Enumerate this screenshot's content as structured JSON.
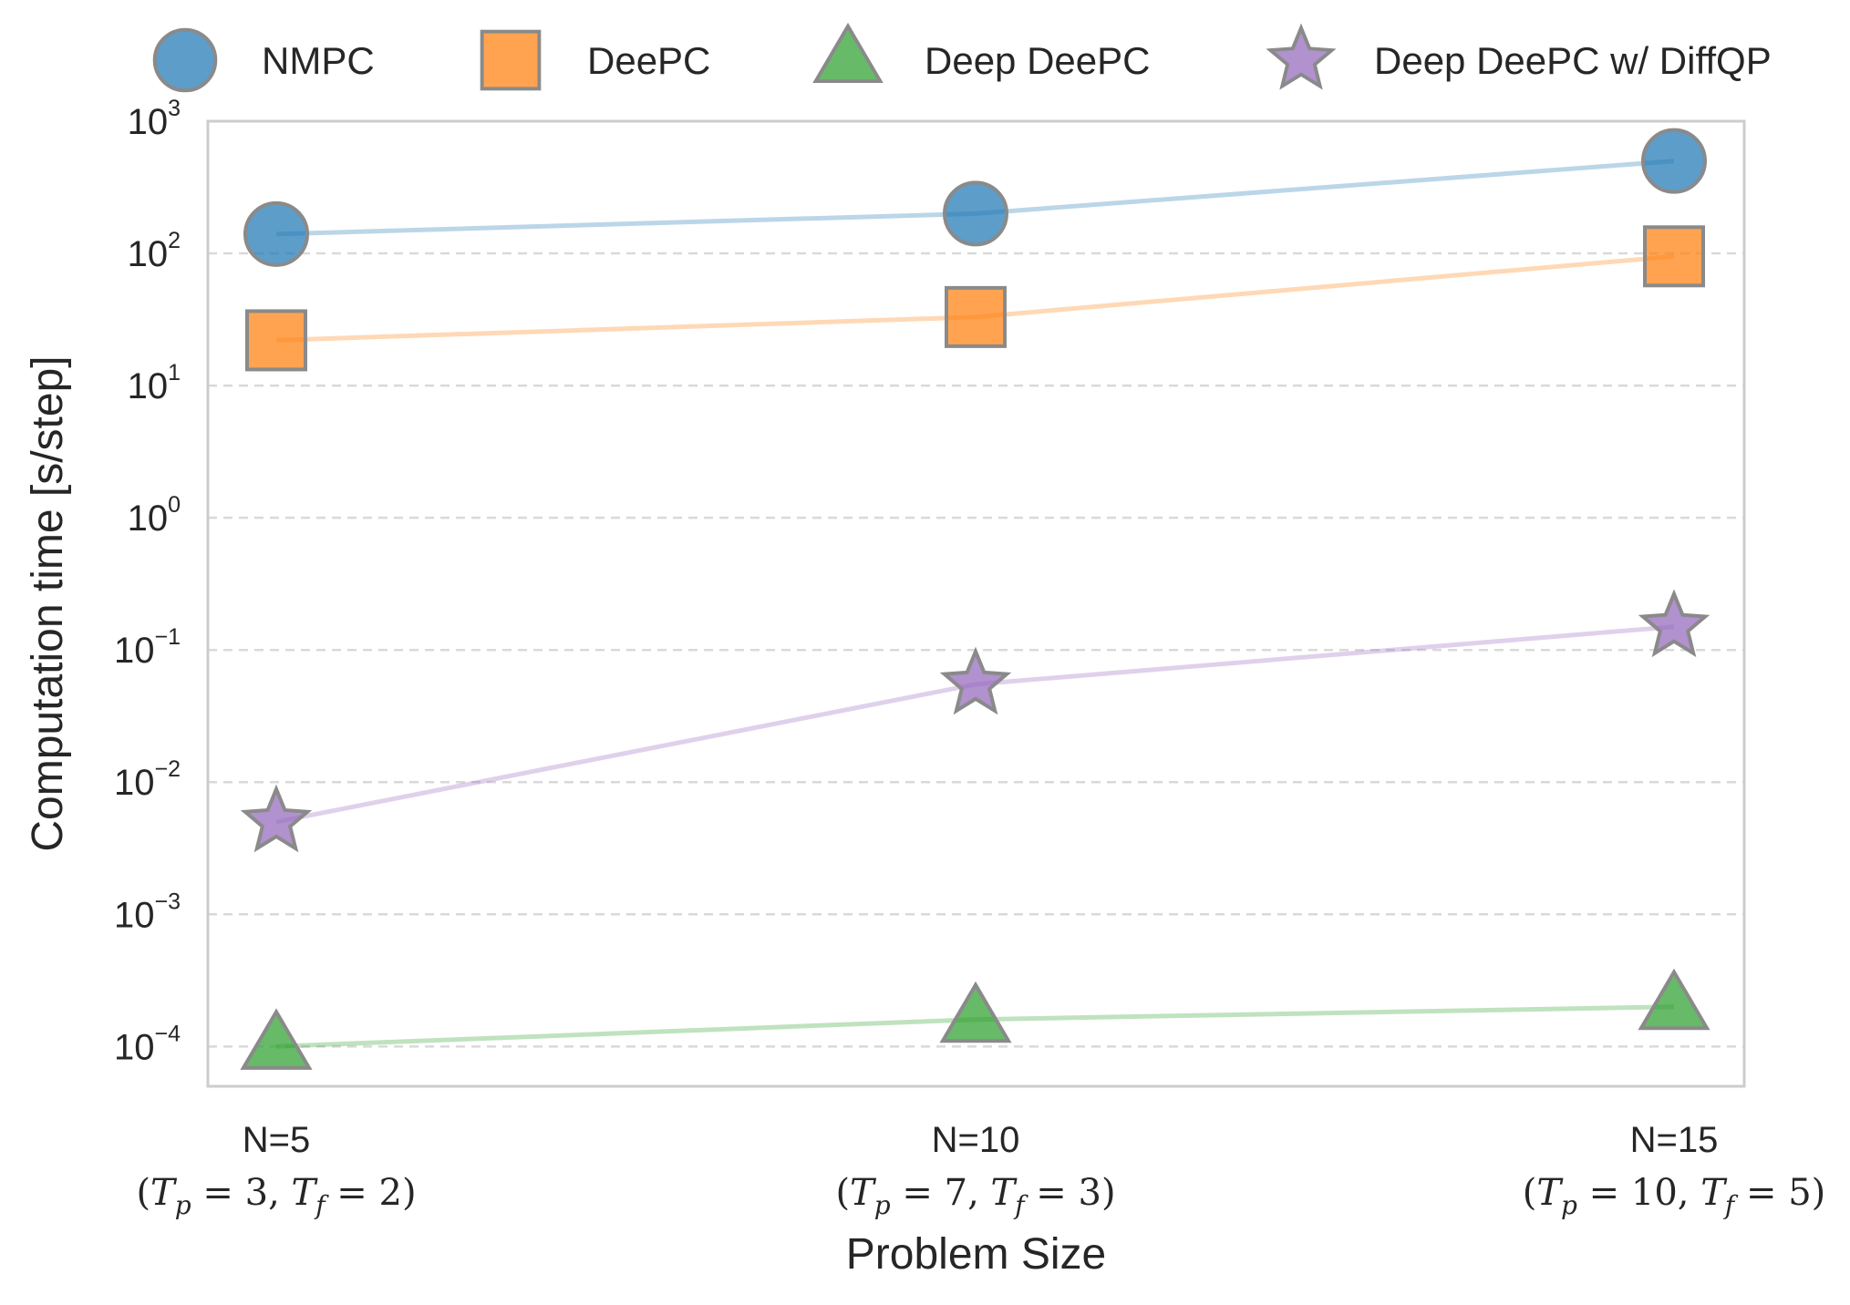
{
  "chart_data": {
    "type": "line",
    "title": "",
    "xlabel": "Problem Size",
    "ylabel": "Computation time [s/step]",
    "yscale": "log",
    "ylim": [
      5e-05,
      1000
    ],
    "yticks": [
      {
        "base": "10",
        "exp": "−4",
        "value": 0.0001
      },
      {
        "base": "10",
        "exp": "−3",
        "value": 0.001
      },
      {
        "base": "10",
        "exp": "−2",
        "value": 0.01
      },
      {
        "base": "10",
        "exp": "−1",
        "value": 0.1
      },
      {
        "base": "10",
        "exp": "0",
        "value": 1
      },
      {
        "base": "10",
        "exp": "1",
        "value": 10
      },
      {
        "base": "10",
        "exp": "2",
        "value": 100
      },
      {
        "base": "10",
        "exp": "3",
        "value": 1000
      }
    ],
    "categories": [
      {
        "label": "N=5",
        "tp": "3",
        "tf": "2"
      },
      {
        "label": "N=10",
        "tp": "7",
        "tf": "3"
      },
      {
        "label": "N=15",
        "tp": "10",
        "tf": "5"
      }
    ],
    "grid": "y-dashed",
    "legend_position": "top-outside",
    "series": [
      {
        "name": "NMPC",
        "marker": "circle",
        "color": "#1f77b4",
        "values": [
          140,
          200,
          500
        ]
      },
      {
        "name": "DeePC",
        "marker": "square",
        "color": "#ff7f0e",
        "values": [
          22,
          33,
          95
        ]
      },
      {
        "name": "Deep DeePC",
        "marker": "triangle",
        "color": "#2ca02c",
        "values": [
          0.0001,
          0.00016,
          0.0002
        ]
      },
      {
        "name": "Deep DeePC w/ DiffQP",
        "marker": "star",
        "color": "#9467bd",
        "values": [
          0.005,
          0.055,
          0.15
        ]
      }
    ]
  }
}
